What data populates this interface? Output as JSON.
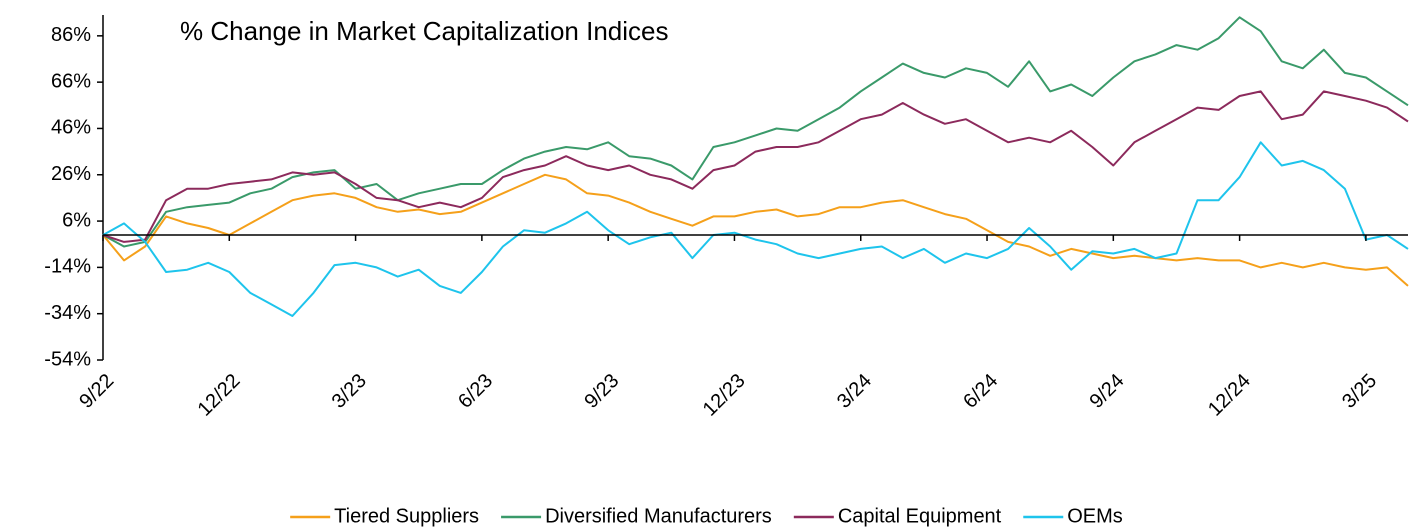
{
  "chart_data": {
    "type": "line",
    "title": "% Change in Market Capitalization Indices",
    "categories": [
      "9/22",
      null,
      null,
      null,
      null,
      null,
      "12/22",
      null,
      null,
      null,
      null,
      null,
      "3/23",
      null,
      null,
      null,
      null,
      null,
      "6/23",
      null,
      null,
      null,
      null,
      null,
      "9/23",
      null,
      null,
      null,
      null,
      null,
      "12/23",
      null,
      null,
      null,
      null,
      null,
      "3/24",
      null,
      null,
      null,
      null,
      null,
      "6/24",
      null,
      null,
      null,
      null,
      null,
      "9/24",
      null,
      null,
      null,
      null,
      null,
      "12/24",
      null,
      null,
      null,
      null,
      null,
      "3/25",
      null,
      null
    ],
    "series": [
      {
        "name": "Tiered Suppliers",
        "color": "#f5a01a",
        "values": [
          0,
          -11,
          -5,
          8,
          5,
          3,
          0,
          5,
          10,
          15,
          17,
          18,
          16,
          12,
          10,
          11,
          9,
          10,
          14,
          18,
          22,
          26,
          24,
          18,
          17,
          14,
          10,
          7,
          4,
          8,
          8,
          10,
          11,
          8,
          9,
          12,
          12,
          14,
          15,
          12,
          9,
          7,
          2,
          -3,
          -5,
          -9,
          -6,
          -8,
          -10,
          -9,
          -10,
          -11,
          -10,
          -11,
          -11,
          -14,
          -12,
          -14,
          -12,
          -14,
          -15,
          -14,
          -22
        ]
      },
      {
        "name": "Diversified Manufacturers",
        "color": "#3a9a6a",
        "values": [
          0,
          -5,
          -3,
          10,
          12,
          13,
          14,
          18,
          20,
          25,
          27,
          28,
          20,
          22,
          15,
          18,
          20,
          22,
          22,
          28,
          33,
          36,
          38,
          37,
          40,
          34,
          33,
          30,
          24,
          38,
          40,
          43,
          46,
          45,
          50,
          55,
          62,
          68,
          74,
          70,
          68,
          72,
          70,
          64,
          75,
          62,
          65,
          60,
          68,
          75,
          78,
          82,
          80,
          85,
          94,
          88,
          75,
          72,
          80,
          70,
          68,
          62,
          56
        ]
      },
      {
        "name": "Capital Equipment",
        "color": "#8c2a5c",
        "values": [
          0,
          -3,
          -2,
          15,
          20,
          20,
          22,
          23,
          24,
          27,
          26,
          27,
          22,
          16,
          15,
          12,
          14,
          12,
          16,
          25,
          28,
          30,
          34,
          30,
          28,
          30,
          26,
          24,
          20,
          28,
          30,
          36,
          38,
          38,
          40,
          45,
          50,
          52,
          57,
          52,
          48,
          50,
          45,
          40,
          42,
          40,
          45,
          38,
          30,
          40,
          45,
          50,
          55,
          54,
          60,
          62,
          50,
          52,
          62,
          60,
          58,
          55,
          49
        ]
      },
      {
        "name": "OEMs",
        "color": "#1ec4ec",
        "values": [
          0,
          5,
          -3,
          -16,
          -15,
          -12,
          -16,
          -25,
          -30,
          -35,
          -25,
          -13,
          -12,
          -14,
          -18,
          -15,
          -22,
          -25,
          -16,
          -5,
          2,
          1,
          5,
          10,
          2,
          -4,
          -1,
          1,
          -10,
          0,
          1,
          -2,
          -4,
          -8,
          -10,
          -8,
          -6,
          -5,
          -10,
          -6,
          -12,
          -8,
          -10,
          -6,
          3,
          -5,
          -15,
          -7,
          -8,
          -6,
          -10,
          -8,
          15,
          15,
          25,
          40,
          30,
          32,
          28,
          20,
          -2,
          0,
          -6
        ]
      }
    ],
    "ylim": [
      -54,
      95
    ],
    "yticks": [
      {
        "value": -54,
        "label": "-54%"
      },
      {
        "value": -34,
        "label": "-34%"
      },
      {
        "value": -14,
        "label": "-14%"
      },
      {
        "value": 6,
        "label": "6%"
      },
      {
        "value": 26,
        "label": "26%"
      },
      {
        "value": 46,
        "label": "46%"
      },
      {
        "value": 66,
        "label": "66%"
      },
      {
        "value": 86,
        "label": "86%"
      }
    ],
    "legend": "bottom"
  }
}
